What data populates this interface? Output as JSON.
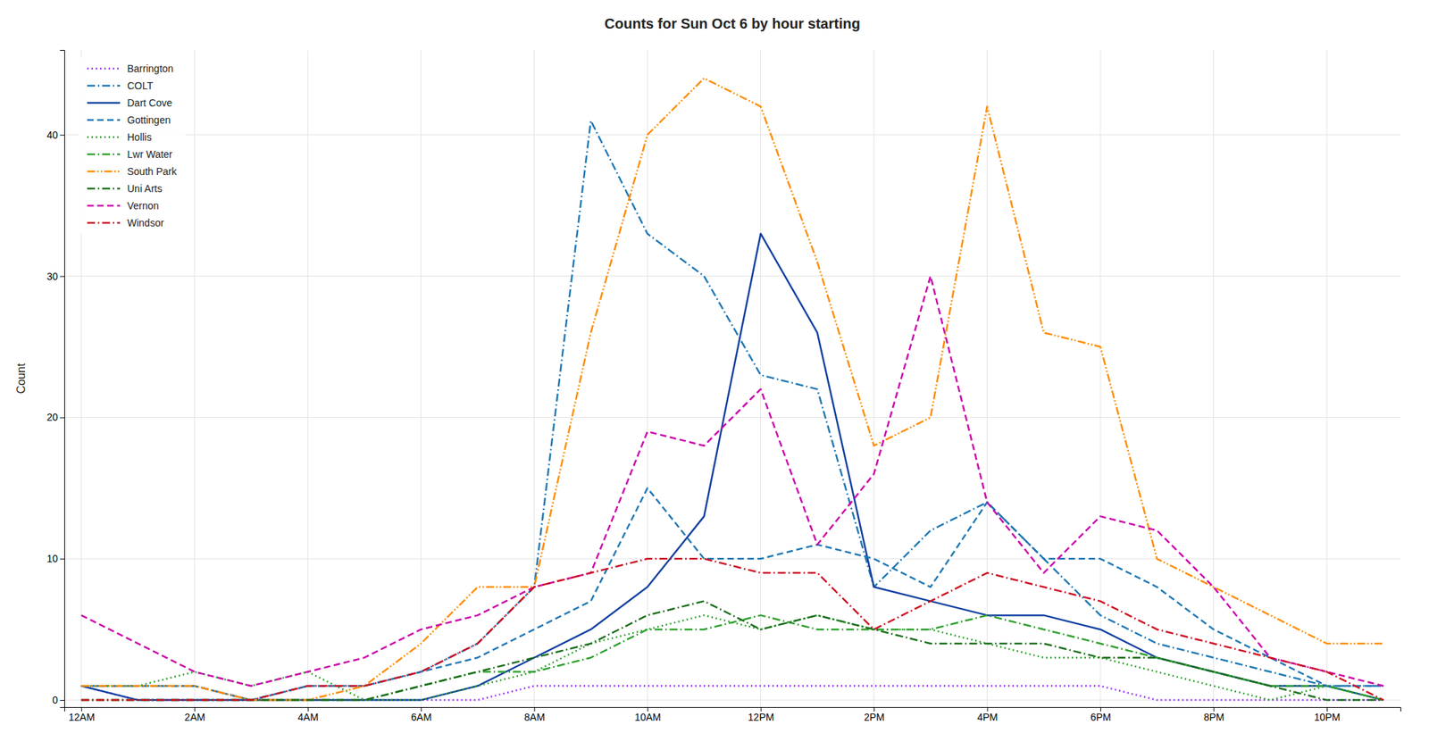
{
  "chart_data": {
    "type": "line",
    "title": "Counts for Sun Oct 6 by hour starting",
    "ylabel": "Count",
    "x": [
      0,
      1,
      2,
      3,
      4,
      5,
      6,
      7,
      8,
      9,
      10,
      11,
      12,
      13,
      14,
      15,
      16,
      17,
      18,
      19,
      20,
      21,
      22,
      23
    ],
    "xlim": [
      -0.3,
      23.3
    ],
    "xticks": [
      {
        "value": 0,
        "label": "12AM"
      },
      {
        "value": 2,
        "label": "2AM"
      },
      {
        "value": 4,
        "label": "4AM"
      },
      {
        "value": 6,
        "label": "6AM"
      },
      {
        "value": 8,
        "label": "8AM"
      },
      {
        "value": 10,
        "label": "10AM"
      },
      {
        "value": 12,
        "label": "12PM"
      },
      {
        "value": 14,
        "label": "2PM"
      },
      {
        "value": 16,
        "label": "4PM"
      },
      {
        "value": 18,
        "label": "6PM"
      },
      {
        "value": 20,
        "label": "8PM"
      },
      {
        "value": 22,
        "label": "10PM"
      }
    ],
    "ylim": [
      -0.5,
      46
    ],
    "yticks": [
      0,
      10,
      20,
      30,
      40
    ],
    "grid": true,
    "legend": "upper left",
    "series": [
      {
        "name": "Barrington",
        "color": "#9B30FF",
        "line_style": "dotted",
        "values": [
          1,
          0,
          0,
          0,
          0,
          0,
          0,
          0,
          1,
          1,
          1,
          1,
          1,
          1,
          1,
          1,
          1,
          1,
          1,
          0,
          0,
          0,
          0,
          0
        ]
      },
      {
        "name": "COLT",
        "color": "#1F77B4",
        "line_style": "dashdot",
        "values": [
          1,
          1,
          1,
          0,
          1,
          1,
          2,
          4,
          8,
          41,
          33,
          30,
          23,
          22,
          8,
          12,
          14,
          10,
          6,
          4,
          3,
          2,
          1,
          1
        ]
      },
      {
        "name": "Dart Cove",
        "color": "#1040A0",
        "line_style": "solid",
        "values": [
          1,
          0,
          0,
          0,
          0,
          0,
          0,
          1,
          3,
          5,
          8,
          13,
          33,
          26,
          8,
          7,
          6,
          6,
          5,
          3,
          2,
          1,
          1,
          0
        ]
      },
      {
        "name": "Gottingen",
        "color": "#1F77B4",
        "line_style": "dashed",
        "values": [
          1,
          1,
          1,
          0,
          1,
          1,
          2,
          3,
          5,
          7,
          15,
          10,
          10,
          11,
          10,
          8,
          14,
          10,
          10,
          8,
          5,
          3,
          1,
          1
        ]
      },
      {
        "name": "Hollis",
        "color": "#2ca02c",
        "line_style": "dotted",
        "values": [
          1,
          1,
          2,
          1,
          2,
          0,
          0,
          1,
          2,
          4,
          5,
          6,
          5,
          6,
          5,
          5,
          4,
          3,
          3,
          2,
          1,
          0,
          1,
          0
        ]
      },
      {
        "name": "Lwr Water",
        "color": "#2ca02c",
        "line_style": "dashdot",
        "values": [
          0,
          0,
          0,
          0,
          0,
          0,
          1,
          2,
          2,
          3,
          5,
          5,
          6,
          5,
          5,
          5,
          6,
          5,
          4,
          3,
          2,
          1,
          1,
          0
        ]
      },
      {
        "name": "South Park",
        "color": "#FF8C00",
        "line_style": "dashdotdotted",
        "values": [
          1,
          1,
          1,
          0,
          0,
          1,
          4,
          8,
          8,
          26,
          40,
          44,
          42,
          31,
          18,
          20,
          42,
          26,
          25,
          10,
          8,
          6,
          4,
          4
        ]
      },
      {
        "name": "Uni Arts",
        "color": "#1a6e1a",
        "line_style": "dashdot",
        "values": [
          0,
          0,
          0,
          0,
          0,
          0,
          1,
          2,
          3,
          4,
          6,
          7,
          5,
          6,
          5,
          4,
          4,
          4,
          3,
          3,
          2,
          1,
          0,
          0
        ]
      },
      {
        "name": "Vernon",
        "color": "#CC00AA",
        "line_style": "dashed",
        "values": [
          6,
          4,
          2,
          1,
          2,
          3,
          5,
          6,
          8,
          9,
          19,
          18,
          22,
          11,
          16,
          30,
          14,
          9,
          13,
          12,
          8,
          3,
          2,
          1
        ]
      },
      {
        "name": "Windsor",
        "color": "#CC1122",
        "line_style": "dashdot",
        "values": [
          0,
          0,
          0,
          0,
          1,
          1,
          2,
          4,
          8,
          9,
          10,
          10,
          9,
          9,
          5,
          7,
          9,
          8,
          7,
          5,
          4,
          3,
          2,
          0
        ]
      }
    ]
  }
}
